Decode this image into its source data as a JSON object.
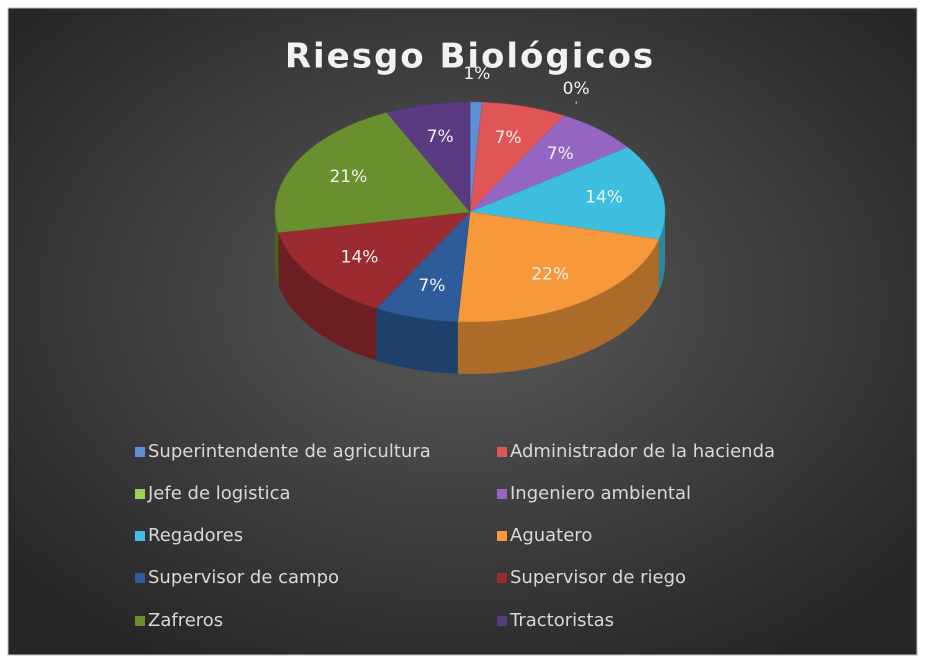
{
  "chart_data": {
    "type": "pie",
    "title": "Riesgo Biológicos",
    "categories": [
      "Superintendente de agricultura",
      "Administrador de la hacienda",
      "Jefe de logistica",
      "Ingeniero ambiental",
      "Regadores",
      "Aguatero",
      "Supervisor de campo",
      "Supervisor de riego",
      "Zafreros",
      "Tractoristas"
    ],
    "values": [
      1,
      7,
      0,
      7,
      14,
      22,
      7,
      14,
      21,
      7
    ],
    "value_labels": [
      "1%",
      "7%",
      "0%",
      "7%",
      "14%",
      "22%",
      "7%",
      "14%",
      "21%",
      "7%"
    ],
    "colors": [
      "#5b8fd6",
      "#e05555",
      "#9bd35a",
      "#9565c4",
      "#3fbfdf",
      "#f7993b",
      "#2e5c9a",
      "#9b2b30",
      "#6a8f2e",
      "#5a3b82"
    ],
    "legend": "bottom"
  }
}
